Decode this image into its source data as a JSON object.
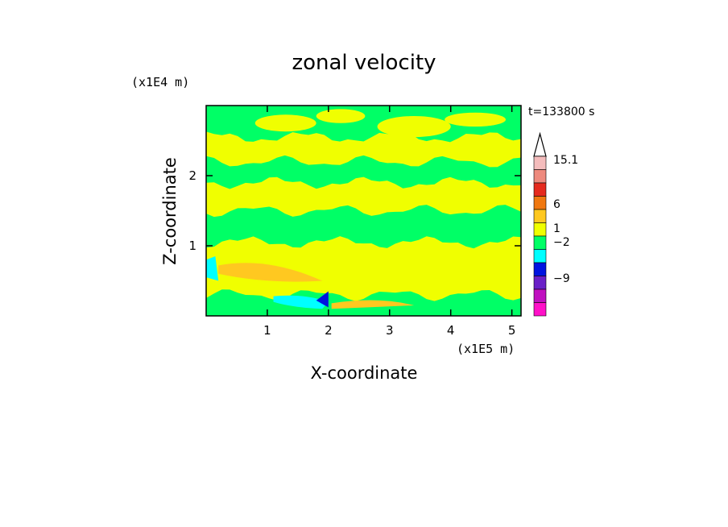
{
  "chart_data": {
    "type": "heatmap",
    "title": "zonal velocity",
    "xlabel": "X-coordinate",
    "ylabel": "Z-coordinate",
    "x_multiplier": "(x1E5 m)",
    "y_multiplier": "(x1E4 m)",
    "time_label": "t=133800 s",
    "xlim": [
      0,
      5.15
    ],
    "ylim": [
      0,
      3.0
    ],
    "x_ticks": [
      1,
      2,
      3,
      4,
      5
    ],
    "y_ticks": [
      1,
      2
    ],
    "colorbar": {
      "tick_labels": [
        "15.1",
        "6",
        "1",
        "−2",
        "−9"
      ],
      "levels_top_to_bottom": [
        {
          "color": "#f4bcbc"
        },
        {
          "color": "#ee8a7e"
        },
        {
          "color": "#e52a1e"
        },
        {
          "color": "#f07810"
        },
        {
          "color": "#ffc820"
        },
        {
          "color": "#f0ff00"
        },
        {
          "color": "#00ff66"
        },
        {
          "color": "#00ffff"
        },
        {
          "color": "#0014e0"
        },
        {
          "color": "#6a20c8"
        },
        {
          "color": "#c010c0"
        },
        {
          "color": "#ff10c8"
        }
      ]
    },
    "bands": [
      {
        "level": "green",
        "z": [
          2.55,
          3.0
        ]
      },
      {
        "level": "yellow",
        "z": [
          2.2,
          2.55
        ]
      },
      {
        "level": "green",
        "z": [
          1.9,
          2.2
        ]
      },
      {
        "level": "yellow",
        "z": [
          1.5,
          1.9
        ]
      },
      {
        "level": "green",
        "z": [
          1.05,
          1.5
        ]
      },
      {
        "level": "yellow",
        "z": [
          0.3,
          1.05
        ]
      },
      {
        "level": "green",
        "z": [
          0.0,
          0.3
        ]
      }
    ]
  },
  "colors": {
    "green": "#00ff66",
    "yellow": "#f0ff00",
    "orange": "#ffc820",
    "cyan": "#00ffff",
    "blue": "#0014e0"
  }
}
